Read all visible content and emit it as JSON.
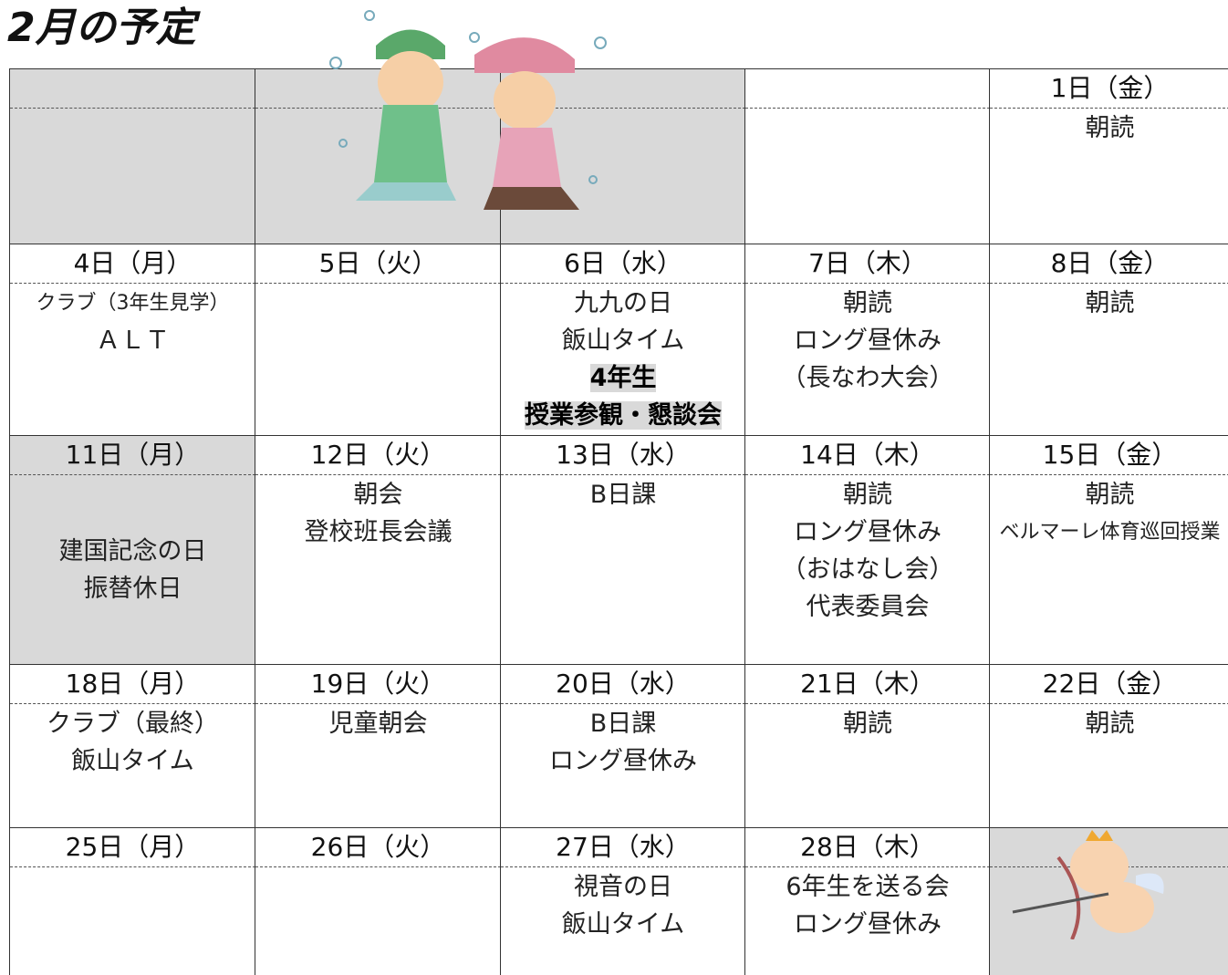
{
  "header": {
    "title": "2月の予定"
  },
  "calendar": {
    "rows": [
      {
        "cells": [
          {
            "shaded": true
          },
          {
            "shaded": true
          },
          {
            "shaded": true
          },
          {},
          {
            "date": "1日（金）",
            "events": [
              {
                "text": "朝読"
              }
            ]
          }
        ]
      },
      {
        "cells": [
          {
            "date": "4日（月）",
            "events": [
              {
                "text": "クラブ（3年生見学）"
              },
              {
                "text": "ＡＬＴ"
              }
            ]
          },
          {
            "date": "5日（火）"
          },
          {
            "date": "6日（水）",
            "events": [
              {
                "text": "九九の日"
              },
              {
                "text": "飯山タイム"
              },
              {
                "text": "4年生",
                "highlight": true
              },
              {
                "text": "授業参観・懇談会",
                "highlight": true
              }
            ]
          },
          {
            "date": "7日（木）",
            "events": [
              {
                "text": "朝読"
              },
              {
                "text": "ロング昼休み"
              },
              {
                "text": "（長なわ大会）"
              }
            ]
          },
          {
            "date": "8日（金）",
            "events": [
              {
                "text": "朝読"
              }
            ]
          }
        ]
      },
      {
        "cells": [
          {
            "date": "11日（月）",
            "shaded": true,
            "centered": true,
            "events": [
              {
                "text": "建国記念の日"
              },
              {
                "text": "振替休日"
              }
            ]
          },
          {
            "date": "12日（火）",
            "events": [
              {
                "text": "朝会"
              },
              {
                "text": "登校班長会議"
              }
            ]
          },
          {
            "date": "13日（水）",
            "events": [
              {
                "text": "B日課"
              }
            ]
          },
          {
            "date": "14日（木）",
            "events": [
              {
                "text": "朝読"
              },
              {
                "text": "ロング昼休み"
              },
              {
                "text": "（おはなし会）"
              },
              {
                "text": "代表委員会"
              }
            ]
          },
          {
            "date": "15日（金）",
            "events": [
              {
                "text": "朝読"
              },
              {
                "text": "ベルマーレ体育巡回授業"
              }
            ]
          }
        ]
      },
      {
        "cells": [
          {
            "date": "18日（月）",
            "events": [
              {
                "text": "クラブ（最終）"
              },
              {
                "text": "飯山タイム"
              }
            ]
          },
          {
            "date": "19日（火）",
            "events": [
              {
                "text": "児童朝会"
              }
            ]
          },
          {
            "date": "20日（水）",
            "events": [
              {
                "text": "B日課"
              },
              {
                "text": "ロング昼休み"
              }
            ]
          },
          {
            "date": "21日（木）",
            "events": [
              {
                "text": "朝読"
              }
            ]
          },
          {
            "date": "22日（金）",
            "events": [
              {
                "text": "朝読"
              }
            ]
          }
        ]
      },
      {
        "cells": [
          {
            "date": "25日（月）"
          },
          {
            "date": "26日（火）"
          },
          {
            "date": "27日（水）",
            "events": [
              {
                "text": "視音の日"
              },
              {
                "text": "飯山タイム"
              }
            ]
          },
          {
            "date": "28日（木）",
            "events": [
              {
                "text": "6年生を送る会"
              },
              {
                "text": "ロング昼休み"
              }
            ]
          },
          {
            "shaded": true
          }
        ]
      }
    ]
  }
}
